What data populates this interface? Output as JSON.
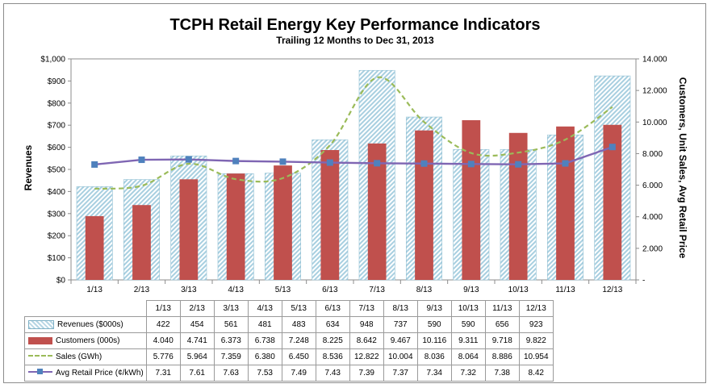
{
  "chart_data": {
    "type": "bar",
    "title": "TCPH Retail Energy Key Performance Indicators",
    "subtitle": "Trailing 12 Months to Dec 31, 2013",
    "ylabel": "Revenues",
    "y2label": "Customers, Unit Sales, Avg Retail Price",
    "ylim": [
      0,
      1000
    ],
    "y2lim": [
      0,
      14000
    ],
    "y_ticks": [
      "$0",
      "$100",
      "$200",
      "$300",
      "$400",
      "$500",
      "$600",
      "$700",
      "$800",
      "$900",
      "$1,000"
    ],
    "y2_ticks": [
      "-",
      "2.000",
      "4.000",
      "6.000",
      "8.000",
      "10.000",
      "12.000",
      "14.000"
    ],
    "grid": false,
    "legend_placement": "data-table",
    "categories": [
      "1/13",
      "2/13",
      "3/13",
      "4/13",
      "5/13",
      "6/13",
      "7/13",
      "8/13",
      "9/13",
      "10/13",
      "11/13",
      "12/13"
    ],
    "series": [
      {
        "name": "Revenues ($000s)",
        "axis": "left",
        "render": "bar",
        "values": [
          422,
          454,
          561,
          481,
          483,
          634,
          948,
          737,
          590,
          590,
          656,
          923
        ],
        "labels": [
          "422",
          "454",
          "561",
          "481",
          "483",
          "634",
          "948",
          "737",
          "590",
          "590",
          "656",
          "923"
        ],
        "color": "#a8cfe0"
      },
      {
        "name": "Customers (000s)",
        "axis": "right",
        "render": "bar",
        "values": [
          4040,
          4741,
          6373,
          6738,
          7248,
          8225,
          8642,
          9467,
          10116,
          9311,
          9718,
          9822
        ],
        "labels": [
          "4.040",
          "4.741",
          "6.373",
          "6.738",
          "7.248",
          "8.225",
          "8.642",
          "9.467",
          "10.116",
          "9.311",
          "9.718",
          "9.822"
        ],
        "color": "#c0504d"
      },
      {
        "name": "Sales (GWh)",
        "axis": "right",
        "render": "dashed-line",
        "values": [
          5776,
          5964,
          7359,
          6380,
          6450,
          8536,
          12822,
          10004,
          8036,
          8064,
          8886,
          10954
        ],
        "labels": [
          "5.776",
          "5.964",
          "7.359",
          "6.380",
          "6.450",
          "8.536",
          "12.822",
          "10.004",
          "8.036",
          "8.064",
          "8.886",
          "10.954"
        ],
        "color": "#9bbb59"
      },
      {
        "name": "Avg Retail Price (¢/kWh)",
        "axis": "right",
        "render": "line-markers",
        "values": [
          7.31,
          7.61,
          7.63,
          7.53,
          7.49,
          7.43,
          7.39,
          7.37,
          7.34,
          7.32,
          7.38,
          8.42
        ],
        "labels": [
          "7.31",
          "7.61",
          "7.63",
          "7.53",
          "7.49",
          "7.43",
          "7.39",
          "7.37",
          "7.34",
          "7.32",
          "7.38",
          "8.42"
        ],
        "color": "#7f66b3",
        "marker_color": "#4f81bd"
      }
    ]
  }
}
